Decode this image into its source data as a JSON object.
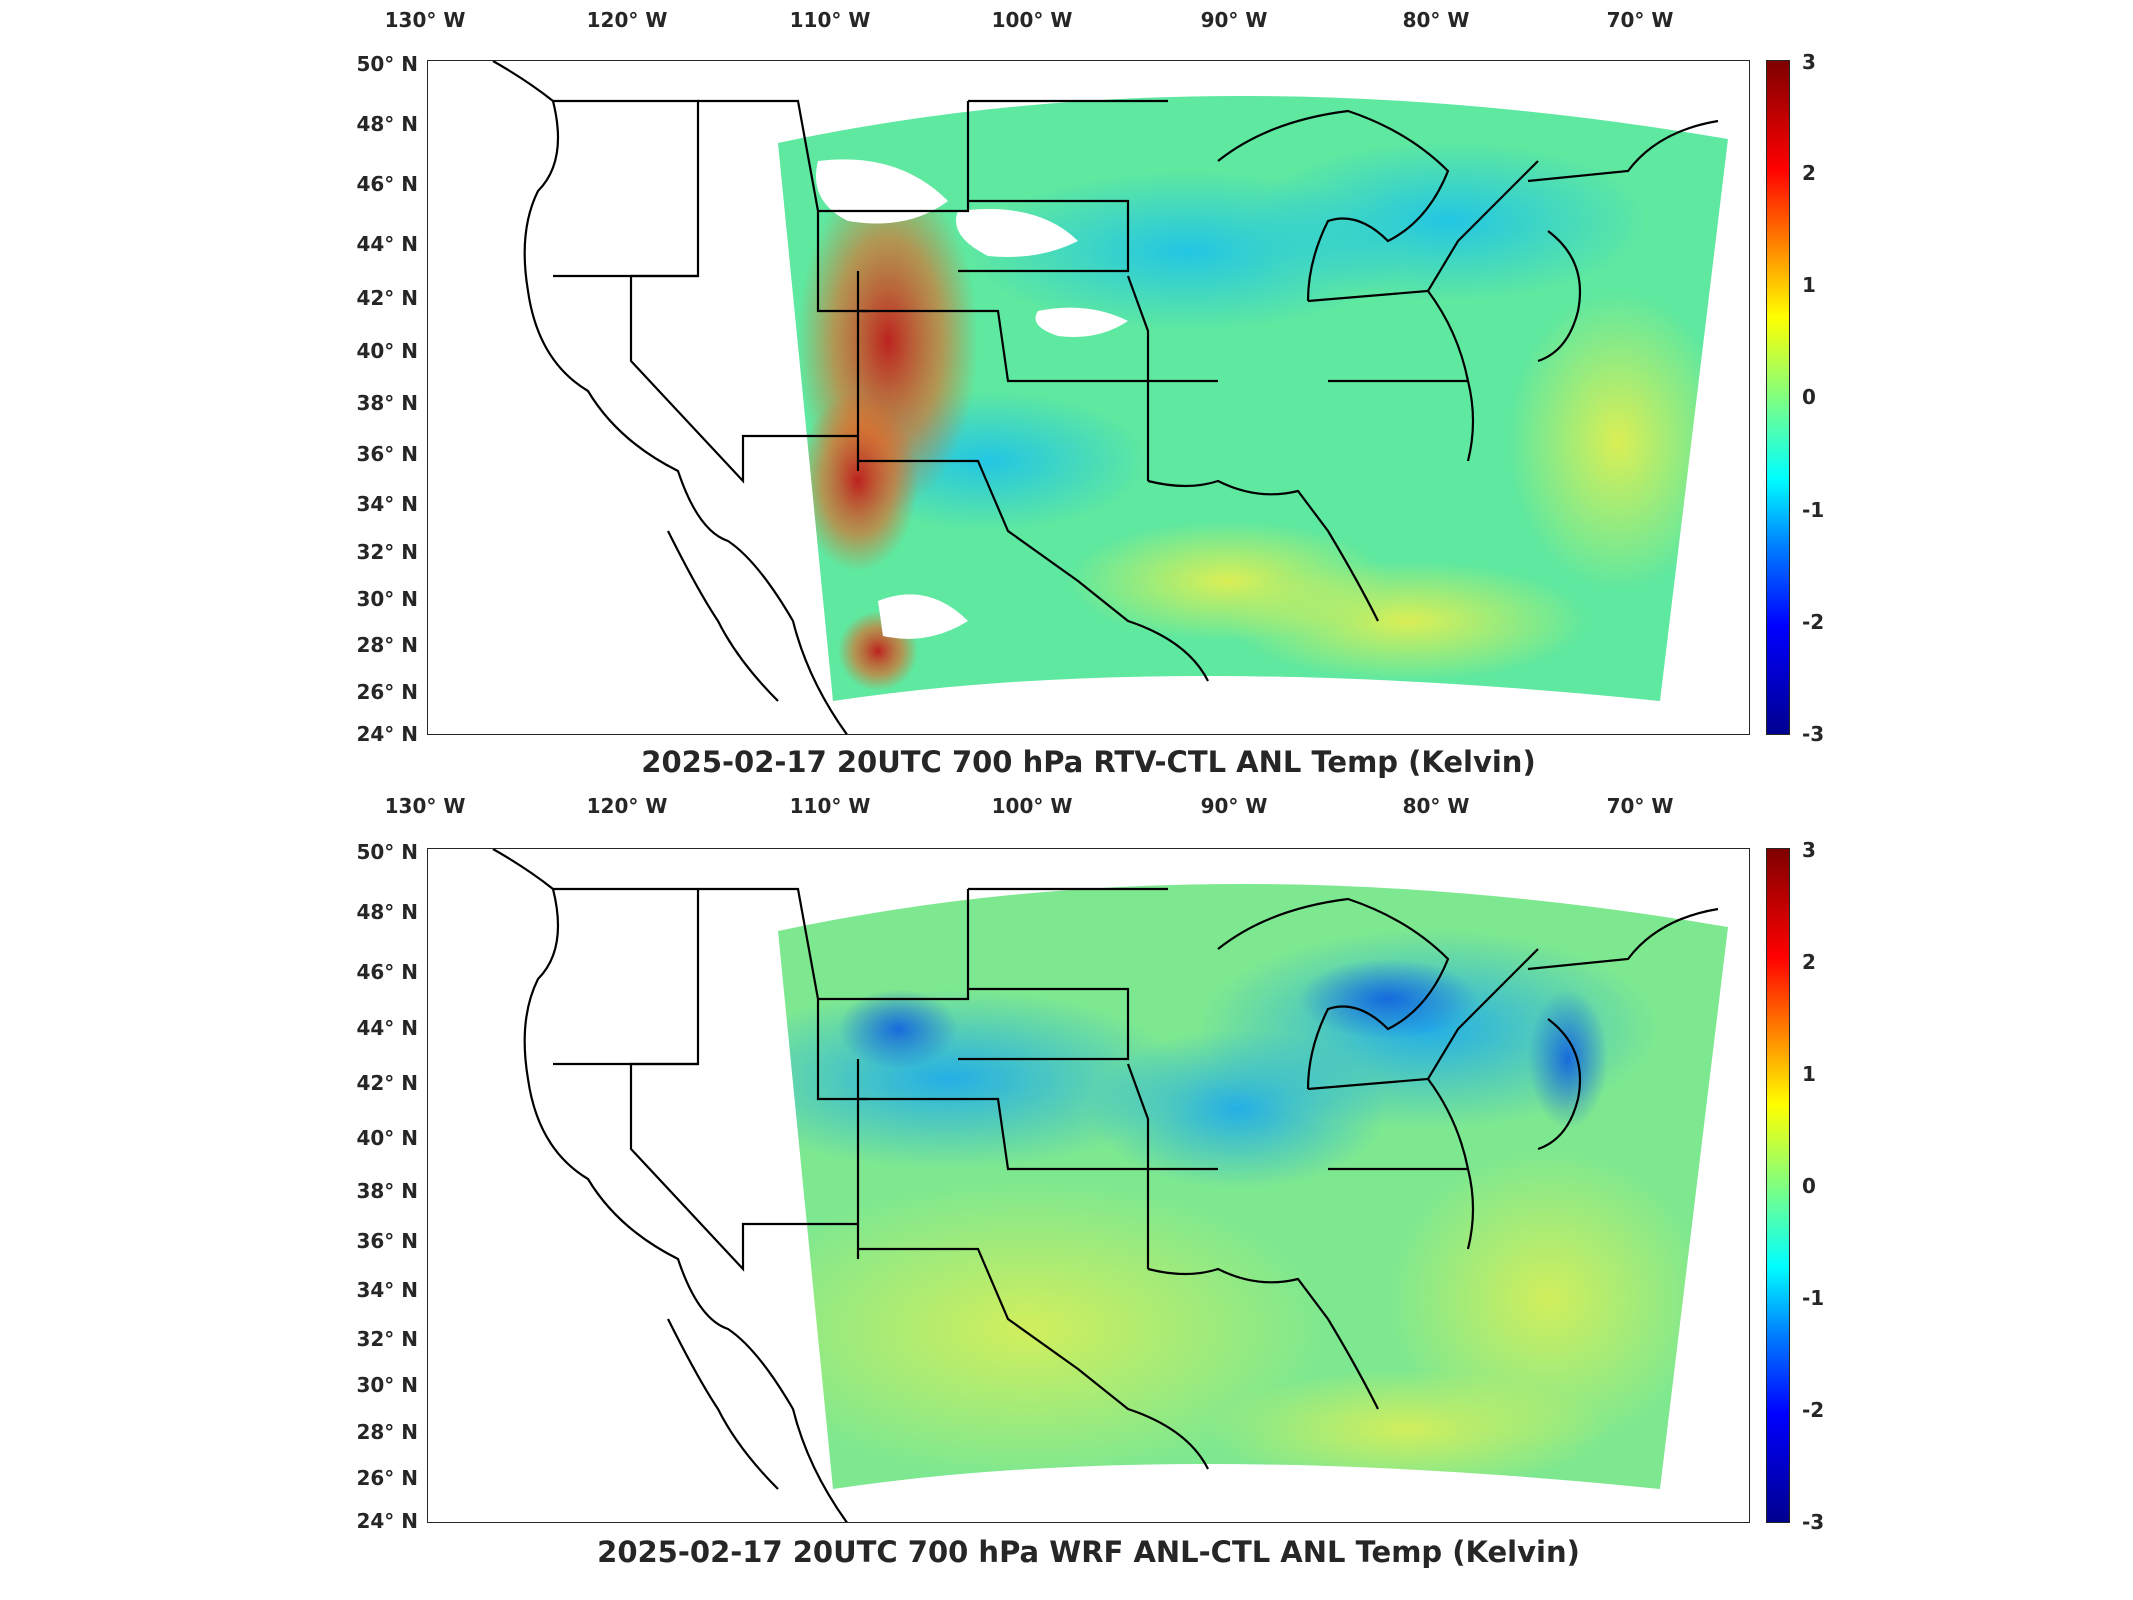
{
  "figure": {
    "longitude_labels": [
      "130° W",
      "120° W",
      "110° W",
      "100° W",
      "90° W",
      "80° W",
      "70° W"
    ],
    "latitude_labels": [
      "50° N",
      "48° N",
      "46° N",
      "44° N",
      "42° N",
      "40° N",
      "38° N",
      "36° N",
      "34° N",
      "32° N",
      "30° N",
      "28° N",
      "26° N",
      "24° N"
    ],
    "colorbar_ticks": [
      "3",
      "2",
      "1",
      "0",
      "-1",
      "-2",
      "-3"
    ],
    "colormap": "jet",
    "colorbar_range": [
      -3,
      3
    ],
    "map_extent": {
      "lon": [
        -131,
        -65
      ],
      "lat": [
        24,
        50
      ]
    }
  },
  "panels": [
    {
      "title": "2025-02-17 20UTC 700 hPa RTV-CTL ANL Temp (Kelvin)",
      "field_summary": "mostly near 0; strong positive values over western mountains; white missing areas over northern plains"
    },
    {
      "title": "2025-02-17 20UTC 700 hPa WRF ANL-CTL ANL Temp (Kelvin)",
      "field_summary": "mostly near 0; negative values over Great Lakes and northern Rockies"
    }
  ],
  "colors": {
    "field_base": "#5fe8a0",
    "cool": "#29c8f0",
    "warm": "#e8f050",
    "hot": "#c81e1e"
  }
}
